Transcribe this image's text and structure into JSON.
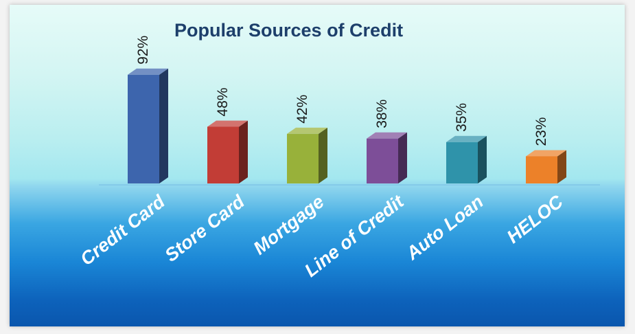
{
  "chart_data": {
    "type": "bar",
    "title": "Popular Sources of Credit",
    "categories": [
      "Credit Card",
      "Store Card",
      "Mortgage",
      "Line of Credit",
      "Auto Loan",
      "HELOC"
    ],
    "values": [
      92,
      48,
      42,
      38,
      35,
      23
    ],
    "data_labels": [
      "92%",
      "48%",
      "42%",
      "38%",
      "35%",
      "23%"
    ],
    "colors": [
      "#3d65ad",
      "#c23d36",
      "#98b13a",
      "#7d4e98",
      "#2f93aa",
      "#ec8129"
    ],
    "ylim": [
      0,
      100
    ],
    "style": "3d-bars",
    "grid": false,
    "legend": "none"
  }
}
